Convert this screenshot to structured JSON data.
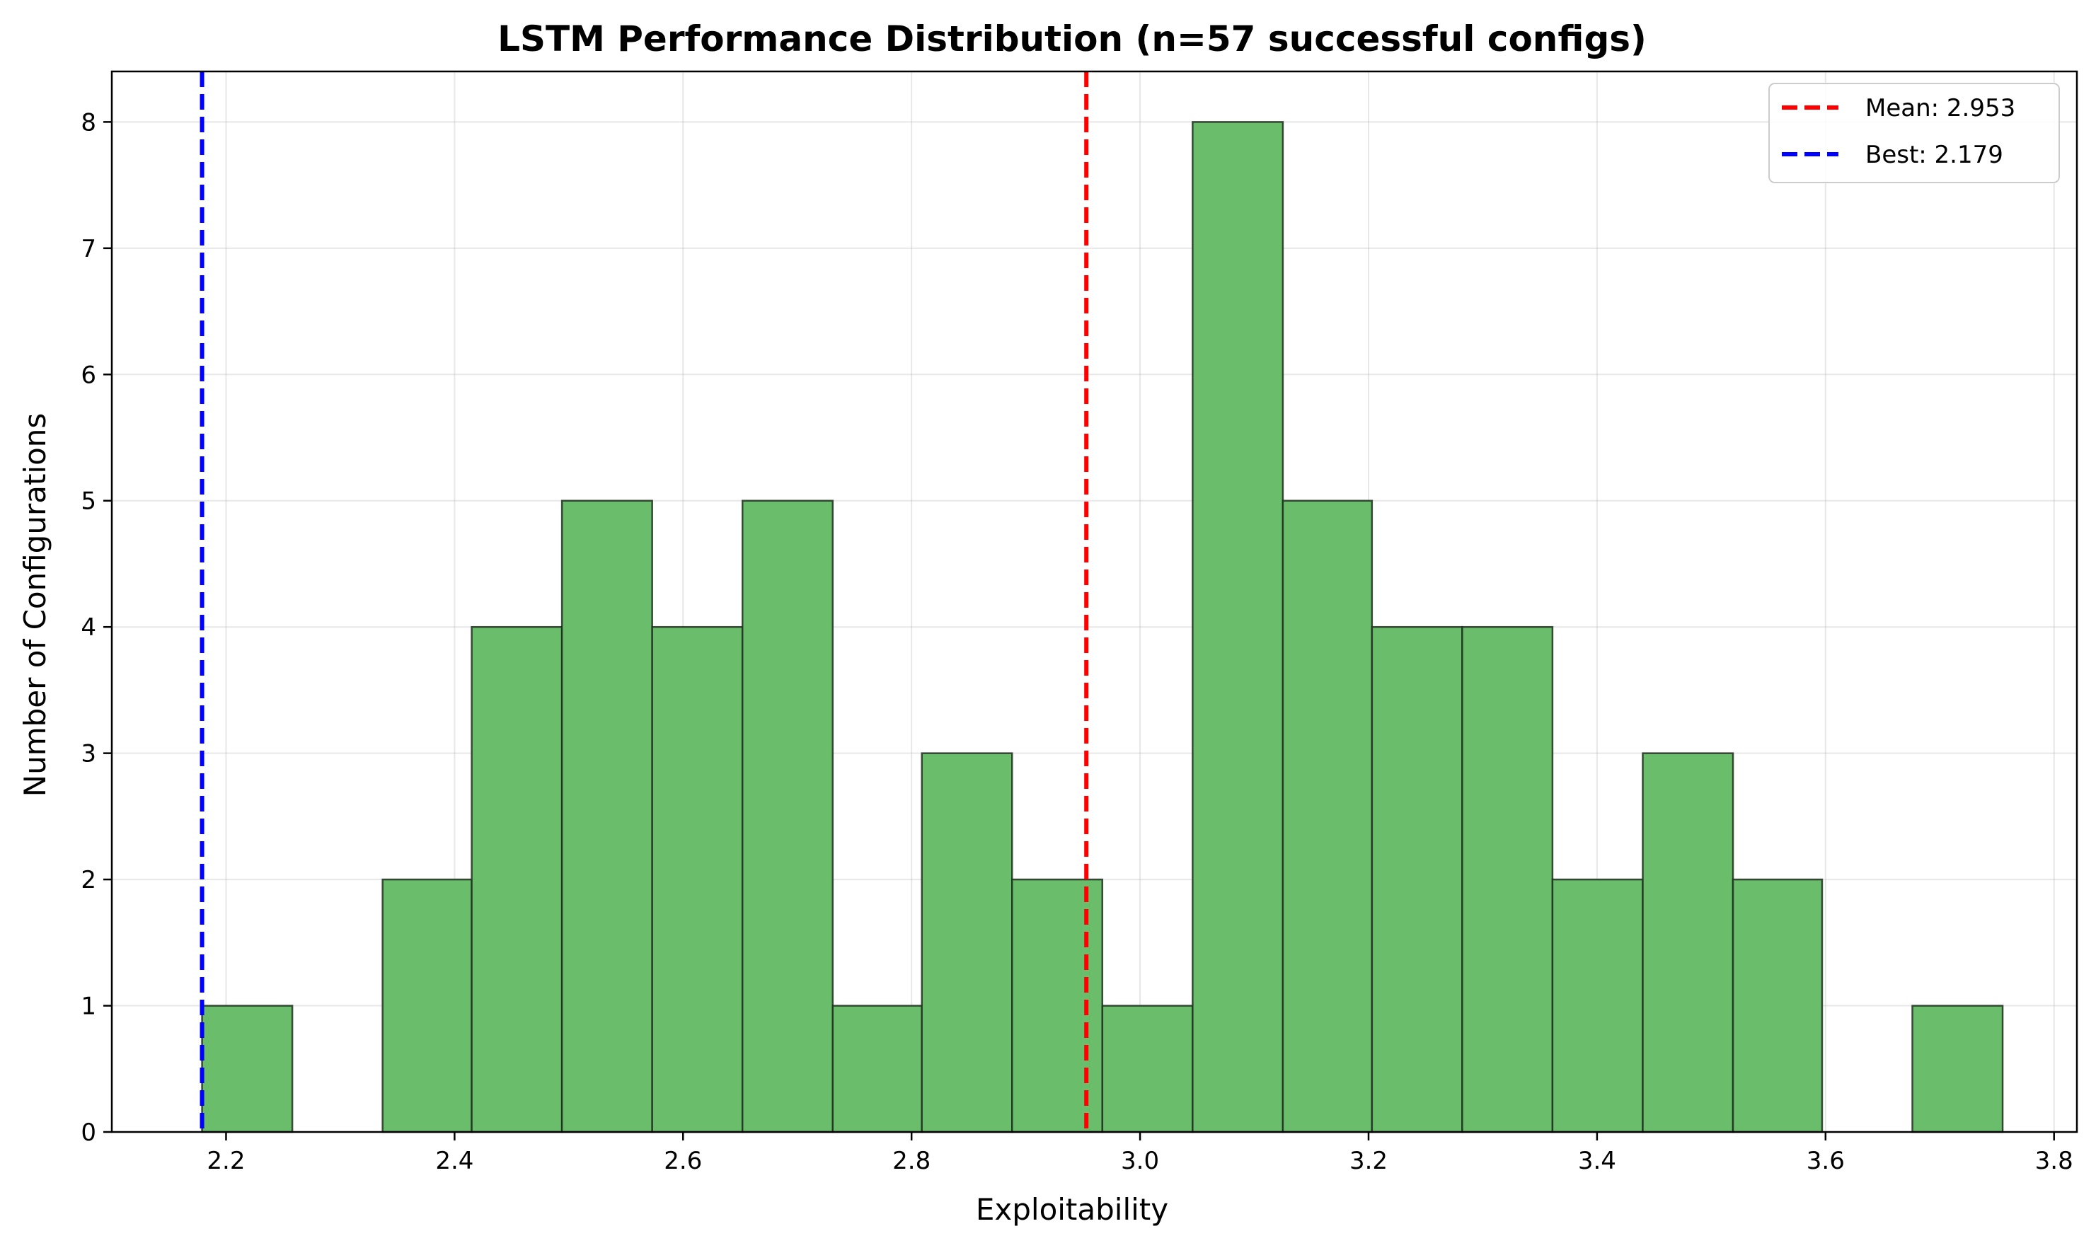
{
  "chart_data": {
    "type": "bar",
    "title": "LSTM Performance Distribution (n=57 successful configs)",
    "xlabel": "Exploitability",
    "ylabel": "Number of Configurations",
    "xlim": [
      2.1,
      3.82
    ],
    "ylim": [
      0,
      8.4
    ],
    "xticks": [
      "2.2",
      "2.4",
      "2.6",
      "2.8",
      "3.0",
      "3.2",
      "3.4",
      "3.6",
      "3.8"
    ],
    "yticks": [
      "0",
      "1",
      "2",
      "3",
      "4",
      "5",
      "6",
      "7",
      "8"
    ],
    "grid": true,
    "legend_position": "top-right",
    "bin_edges": [
      2.179,
      2.258,
      2.337,
      2.415,
      2.494,
      2.573,
      2.652,
      2.731,
      2.809,
      2.888,
      2.967,
      3.046,
      3.125,
      3.203,
      3.282,
      3.361,
      3.44,
      3.519,
      3.597,
      3.676,
      3.755
    ],
    "counts": [
      1,
      0,
      2,
      4,
      5,
      4,
      5,
      1,
      3,
      2,
      1,
      8,
      5,
      4,
      4,
      2,
      3,
      2,
      0,
      1
    ],
    "bar_color": "#6ABD6B",
    "bar_edge_color": "#1f2f1f",
    "reference_lines": [
      {
        "label": "Mean: 2.953",
        "value": 2.953,
        "color": "#FF0000"
      },
      {
        "label": "Best: 2.179",
        "value": 2.179,
        "color": "#0000FF"
      }
    ]
  }
}
